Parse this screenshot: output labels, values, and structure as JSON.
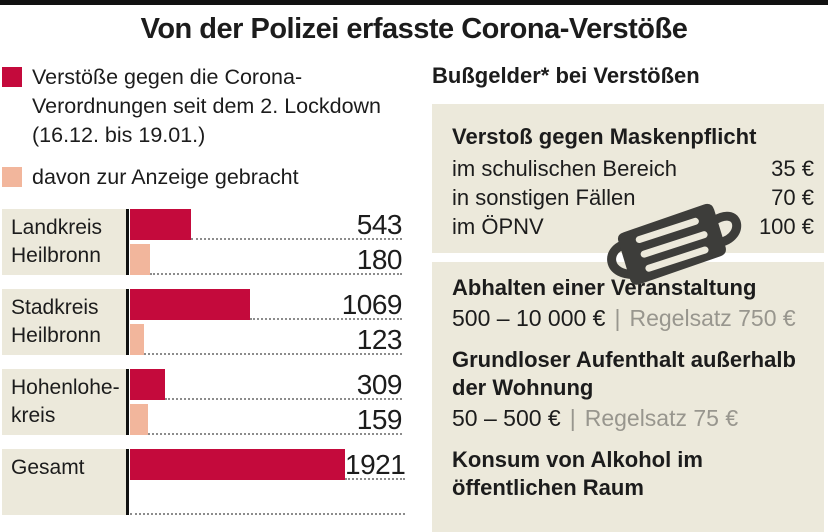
{
  "title": "Von der Polizei erfasste Corona-Verstöße",
  "colors": {
    "primary": "#c40a3c",
    "secondary": "#f2b69c",
    "panel": "#ece9db",
    "gray_text": "#98968e",
    "icon": "#3d3d3a"
  },
  "legend": {
    "primary_label": "Verstöße gegen die Corona-Verordnungen seit dem 2. Lockdown (16.12. bis 19.01.)",
    "secondary_label": "davon zur Anzeige gebracht"
  },
  "chart": {
    "rows": [
      {
        "label1": "Landkreis",
        "label2": "Heilbronn",
        "total": 543,
        "reported": 180
      },
      {
        "label1": "Stadkreis",
        "label2": "Heilbronn",
        "total": 1069,
        "reported": 123
      },
      {
        "label1": "Hohenlohe-",
        "label2": "kreis",
        "total": 309,
        "reported": 159
      },
      {
        "label1": "Gesamt",
        "label2": "",
        "total": 1921,
        "reported": null
      }
    ]
  },
  "chart_data": {
    "type": "bar",
    "orientation": "horizontal",
    "title": "Von der Polizei erfasste Corona-Verstöße",
    "categories": [
      "Landkreis Heilbronn",
      "Stadkreis Heilbronn",
      "Hohenlohekreis",
      "Gesamt"
    ],
    "series": [
      {
        "name": "Verstöße gegen die Corona-Verordnungen seit dem 2. Lockdown (16.12. bis 19.01.)",
        "color": "#c40a3c",
        "values": [
          543,
          1069,
          309,
          1921
        ]
      },
      {
        "name": "davon zur Anzeige gebracht",
        "color": "#f2b69c",
        "values": [
          180,
          123,
          159,
          null
        ]
      }
    ],
    "value_labels_shown": true,
    "xlim": [
      0,
      1921
    ],
    "grid": false,
    "legend_position": "top-left"
  },
  "fines": {
    "heading": "Bußgelder* bei Verstößen",
    "mask_panel": {
      "title": "Verstoß gegen Maskenpflicht",
      "items": [
        {
          "label": "im schulischen Bereich",
          "price": "35 €"
        },
        {
          "label": "in sonstigen Fällen",
          "price": "70 €"
        },
        {
          "label": "im ÖPNV",
          "price": "100 €"
        }
      ],
      "icon": "face-mask-icon"
    },
    "other_panel": {
      "separator": "|",
      "entries": [
        {
          "title": "Abhalten einer Veranstaltung",
          "range": "500 – 10 000 €",
          "regular": "Regelsatz 750 €"
        },
        {
          "title": "Grundloser Aufenthalt außerhalb der Wohnung",
          "range": "50 – 500 €",
          "regular": "Regelsatz 75 €"
        },
        {
          "title": "Konsum von Alkohol im öffentlichen Raum"
        }
      ]
    }
  }
}
